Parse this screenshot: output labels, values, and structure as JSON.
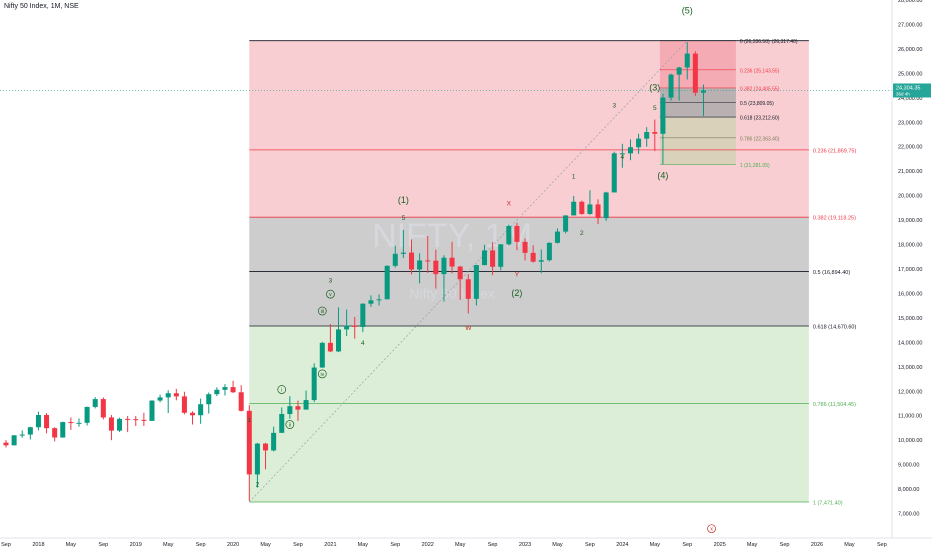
{
  "header": {
    "symbol_title": "Nifty 50 Index, 1M, NSE"
  },
  "watermark": {
    "symbol": "NIFTY, 1M",
    "name": "Nifty 50 Index"
  },
  "price_tag": {
    "price": "24,304.35",
    "countdown": "36d 4h"
  },
  "colors": {
    "up": "#089981",
    "down": "#f23645",
    "fib_red": "#f7c6cb",
    "fib_gray": "#c8c8c8",
    "fib_green": "#d8ecd3",
    "price_tag": "#26a69a"
  },
  "chart_data": {
    "type": "candlestick",
    "interval": "1M",
    "ylim": [
      6000,
      28000
    ],
    "x_range": [
      "2017-09",
      "2026-10"
    ],
    "grid": false,
    "y_ticks": [
      "7,000.00",
      "8,000.00",
      "9,000.00",
      "10,000.00",
      "11,000.00",
      "12,000.00",
      "13,000.00",
      "14,000.00",
      "15,000.00",
      "16,000.00",
      "17,000.00",
      "18,000.00",
      "19,000.00",
      "20,000.00",
      "21,000.00",
      "22,000.00",
      "23,000.00",
      "24,000.00",
      "25,000.00",
      "26,000.00",
      "27,000.00",
      "28,000.00"
    ],
    "y_tick_values": [
      7000,
      8000,
      9000,
      10000,
      11000,
      12000,
      13000,
      14000,
      15000,
      16000,
      17000,
      18000,
      19000,
      20000,
      21000,
      22000,
      23000,
      24000,
      25000,
      26000,
      27000,
      28000
    ],
    "x_ticks": [
      {
        "label": "Sep",
        "date": "2017-09"
      },
      {
        "label": "2018",
        "date": "2018-01"
      },
      {
        "label": "May",
        "date": "2018-05"
      },
      {
        "label": "Sep",
        "date": "2018-09"
      },
      {
        "label": "2019",
        "date": "2019-01"
      },
      {
        "label": "May",
        "date": "2019-05"
      },
      {
        "label": "Sep",
        "date": "2019-09"
      },
      {
        "label": "2020",
        "date": "2020-01"
      },
      {
        "label": "May",
        "date": "2020-05"
      },
      {
        "label": "Sep",
        "date": "2020-09"
      },
      {
        "label": "2021",
        "date": "2021-01"
      },
      {
        "label": "May",
        "date": "2021-05"
      },
      {
        "label": "Sep",
        "date": "2021-09"
      },
      {
        "label": "2022",
        "date": "2022-01"
      },
      {
        "label": "May",
        "date": "2022-05"
      },
      {
        "label": "Sep",
        "date": "2022-09"
      },
      {
        "label": "2023",
        "date": "2023-01"
      },
      {
        "label": "May",
        "date": "2023-05"
      },
      {
        "label": "Sep",
        "date": "2023-09"
      },
      {
        "label": "2024",
        "date": "2024-01"
      },
      {
        "label": "May",
        "date": "2024-05"
      },
      {
        "label": "Sep",
        "date": "2024-09"
      },
      {
        "label": "2025",
        "date": "2025-01"
      },
      {
        "label": "May",
        "date": "2025-05"
      },
      {
        "label": "Sep",
        "date": "2025-09"
      },
      {
        "label": "2026",
        "date": "2026-01"
      },
      {
        "label": "May",
        "date": "2026-05"
      },
      {
        "label": "Sep",
        "date": "2026-09"
      }
    ],
    "candles": [
      {
        "d": "2017-09",
        "o": 9900,
        "h": 10000,
        "l": 9700,
        "c": 9790
      },
      {
        "d": "2017-10",
        "o": 9790,
        "h": 10200,
        "l": 9780,
        "c": 10200
      },
      {
        "d": "2017-11",
        "o": 10200,
        "h": 10400,
        "l": 10100,
        "c": 10230
      },
      {
        "d": "2017-12",
        "o": 10230,
        "h": 10550,
        "l": 10030,
        "c": 10530
      },
      {
        "d": "2018-01",
        "o": 10530,
        "h": 11170,
        "l": 10400,
        "c": 11030
      },
      {
        "d": "2018-02",
        "o": 11030,
        "h": 11110,
        "l": 10280,
        "c": 10490
      },
      {
        "d": "2018-03",
        "o": 10490,
        "h": 10530,
        "l": 9950,
        "c": 10110
      },
      {
        "d": "2018-04",
        "o": 10110,
        "h": 10760,
        "l": 10100,
        "c": 10740
      },
      {
        "d": "2018-05",
        "o": 10740,
        "h": 10930,
        "l": 10420,
        "c": 10710
      },
      {
        "d": "2018-06",
        "o": 10710,
        "h": 10890,
        "l": 10550,
        "c": 10710
      },
      {
        "d": "2018-07",
        "o": 10710,
        "h": 11370,
        "l": 10600,
        "c": 11360
      },
      {
        "d": "2018-08",
        "o": 11360,
        "h": 11760,
        "l": 11300,
        "c": 11680
      },
      {
        "d": "2018-09",
        "o": 11680,
        "h": 11750,
        "l": 10850,
        "c": 10930
      },
      {
        "d": "2018-10",
        "o": 10930,
        "h": 11030,
        "l": 10000,
        "c": 10390
      },
      {
        "d": "2018-11",
        "o": 10390,
        "h": 10920,
        "l": 10340,
        "c": 10870
      },
      {
        "d": "2018-12",
        "o": 10870,
        "h": 10990,
        "l": 10330,
        "c": 10860
      },
      {
        "d": "2019-01",
        "o": 10860,
        "h": 10990,
        "l": 10580,
        "c": 10830
      },
      {
        "d": "2019-02",
        "o": 10830,
        "h": 11120,
        "l": 10580,
        "c": 10790
      },
      {
        "d": "2019-03",
        "o": 10790,
        "h": 11630,
        "l": 10820,
        "c": 11620
      },
      {
        "d": "2019-04",
        "o": 11620,
        "h": 11860,
        "l": 11550,
        "c": 11750
      },
      {
        "d": "2019-05",
        "o": 11750,
        "h": 12040,
        "l": 11110,
        "c": 11920
      },
      {
        "d": "2019-06",
        "o": 11920,
        "h": 12100,
        "l": 11630,
        "c": 11790
      },
      {
        "d": "2019-07",
        "o": 11790,
        "h": 11980,
        "l": 11060,
        "c": 11120
      },
      {
        "d": "2019-08",
        "o": 11120,
        "h": 11180,
        "l": 10640,
        "c": 11020
      },
      {
        "d": "2019-09",
        "o": 11020,
        "h": 11700,
        "l": 10670,
        "c": 11470
      },
      {
        "d": "2019-10",
        "o": 11470,
        "h": 11950,
        "l": 11090,
        "c": 11880
      },
      {
        "d": "2019-11",
        "o": 11880,
        "h": 12160,
        "l": 11800,
        "c": 12060
      },
      {
        "d": "2019-12",
        "o": 12060,
        "h": 12290,
        "l": 11830,
        "c": 12170
      },
      {
        "d": "2020-01",
        "o": 12170,
        "h": 12430,
        "l": 11930,
        "c": 11960
      },
      {
        "d": "2020-02",
        "o": 11960,
        "h": 12250,
        "l": 11170,
        "c": 11200
      },
      {
        "d": "2020-03",
        "o": 11200,
        "h": 11430,
        "l": 7510,
        "c": 8600
      },
      {
        "d": "2020-04",
        "o": 8600,
        "h": 9890,
        "l": 8060,
        "c": 9860
      },
      {
        "d": "2020-05",
        "o": 9860,
        "h": 9890,
        "l": 8810,
        "c": 9580
      },
      {
        "d": "2020-06",
        "o": 9580,
        "h": 10550,
        "l": 9540,
        "c": 10300
      },
      {
        "d": "2020-07",
        "o": 10300,
        "h": 11340,
        "l": 10300,
        "c": 11070
      },
      {
        "d": "2020-08",
        "o": 11070,
        "h": 11800,
        "l": 10880,
        "c": 11390
      },
      {
        "d": "2020-09",
        "o": 11390,
        "h": 11620,
        "l": 10790,
        "c": 11250
      },
      {
        "d": "2020-10",
        "o": 11250,
        "h": 12030,
        "l": 11350,
        "c": 11640
      },
      {
        "d": "2020-11",
        "o": 11640,
        "h": 13140,
        "l": 11560,
        "c": 12970
      },
      {
        "d": "2020-12",
        "o": 12970,
        "h": 14020,
        "l": 12960,
        "c": 13980
      },
      {
        "d": "2021-01",
        "o": 13980,
        "h": 14750,
        "l": 13600,
        "c": 13630
      },
      {
        "d": "2021-02",
        "o": 13630,
        "h": 15430,
        "l": 13600,
        "c": 14530
      },
      {
        "d": "2021-03",
        "o": 14530,
        "h": 15340,
        "l": 14260,
        "c": 14690
      },
      {
        "d": "2021-04",
        "o": 14690,
        "h": 15040,
        "l": 14150,
        "c": 14630
      },
      {
        "d": "2021-05",
        "o": 14630,
        "h": 15600,
        "l": 14420,
        "c": 15580
      },
      {
        "d": "2021-06",
        "o": 15580,
        "h": 15920,
        "l": 15450,
        "c": 15720
      },
      {
        "d": "2021-07",
        "o": 15720,
        "h": 15960,
        "l": 15510,
        "c": 15760
      },
      {
        "d": "2021-08",
        "o": 15760,
        "h": 17150,
        "l": 15830,
        "c": 17130
      },
      {
        "d": "2021-09",
        "o": 17130,
        "h": 17950,
        "l": 17060,
        "c": 17620
      },
      {
        "d": "2021-10",
        "o": 17620,
        "h": 18600,
        "l": 17450,
        "c": 17670
      },
      {
        "d": "2021-11",
        "o": 17670,
        "h": 18210,
        "l": 16780,
        "c": 16980
      },
      {
        "d": "2021-12",
        "o": 16980,
        "h": 17640,
        "l": 16410,
        "c": 17350
      },
      {
        "d": "2022-01",
        "o": 17350,
        "h": 18350,
        "l": 16840,
        "c": 17340
      },
      {
        "d": "2022-02",
        "o": 17340,
        "h": 17790,
        "l": 16200,
        "c": 16790
      },
      {
        "d": "2022-03",
        "o": 16790,
        "h": 17560,
        "l": 15670,
        "c": 17460
      },
      {
        "d": "2022-04",
        "o": 17460,
        "h": 18110,
        "l": 16820,
        "c": 17100
      },
      {
        "d": "2022-05",
        "o": 17100,
        "h": 17130,
        "l": 15740,
        "c": 16580
      },
      {
        "d": "2022-06",
        "o": 16580,
        "h": 16790,
        "l": 15180,
        "c": 15780
      },
      {
        "d": "2022-07",
        "o": 15780,
        "h": 17170,
        "l": 15510,
        "c": 17160
      },
      {
        "d": "2022-08",
        "o": 17160,
        "h": 17990,
        "l": 17150,
        "c": 17760
      },
      {
        "d": "2022-09",
        "o": 17760,
        "h": 18100,
        "l": 16750,
        "c": 17090
      },
      {
        "d": "2022-10",
        "o": 17090,
        "h": 18020,
        "l": 16950,
        "c": 18010
      },
      {
        "d": "2022-11",
        "o": 18010,
        "h": 18820,
        "l": 17960,
        "c": 18760
      },
      {
        "d": "2022-12",
        "o": 18760,
        "h": 18890,
        "l": 17770,
        "c": 18110
      },
      {
        "d": "2023-01",
        "o": 18110,
        "h": 18250,
        "l": 17350,
        "c": 17660
      },
      {
        "d": "2023-02",
        "o": 17660,
        "h": 17970,
        "l": 17260,
        "c": 17300
      },
      {
        "d": "2023-03",
        "o": 17300,
        "h": 17800,
        "l": 16830,
        "c": 17360
      },
      {
        "d": "2023-04",
        "o": 17360,
        "h": 18090,
        "l": 17310,
        "c": 18070
      },
      {
        "d": "2023-05",
        "o": 18070,
        "h": 18660,
        "l": 18040,
        "c": 18530
      },
      {
        "d": "2023-06",
        "o": 18530,
        "h": 19200,
        "l": 18460,
        "c": 19190
      },
      {
        "d": "2023-07",
        "o": 19190,
        "h": 19990,
        "l": 19230,
        "c": 19750
      },
      {
        "d": "2023-08",
        "o": 19750,
        "h": 19800,
        "l": 19220,
        "c": 19250
      },
      {
        "d": "2023-09",
        "o": 19250,
        "h": 20220,
        "l": 19220,
        "c": 19640
      },
      {
        "d": "2023-10",
        "o": 19640,
        "h": 19850,
        "l": 18840,
        "c": 19080
      },
      {
        "d": "2023-11",
        "o": 19080,
        "h": 20160,
        "l": 18970,
        "c": 20130
      },
      {
        "d": "2023-12",
        "o": 20130,
        "h": 21800,
        "l": 20180,
        "c": 21730
      },
      {
        "d": "2024-01",
        "o": 21730,
        "h": 22120,
        "l": 21140,
        "c": 21730
      },
      {
        "d": "2024-02",
        "o": 21730,
        "h": 22300,
        "l": 21450,
        "c": 21980
      },
      {
        "d": "2024-03",
        "o": 21980,
        "h": 22530,
        "l": 21710,
        "c": 22330
      },
      {
        "d": "2024-04",
        "o": 22330,
        "h": 22800,
        "l": 22000,
        "c": 22600
      },
      {
        "d": "2024-05",
        "o": 22600,
        "h": 23110,
        "l": 21820,
        "c": 22530
      },
      {
        "d": "2024-06",
        "o": 22530,
        "h": 24170,
        "l": 21280,
        "c": 24010
      },
      {
        "d": "2024-07",
        "o": 24010,
        "h": 24990,
        "l": 23890,
        "c": 24950
      },
      {
        "d": "2024-08",
        "o": 24950,
        "h": 25270,
        "l": 23890,
        "c": 25240
      },
      {
        "d": "2024-09",
        "o": 25240,
        "h": 26280,
        "l": 24750,
        "c": 25810
      },
      {
        "d": "2024-10",
        "o": 25810,
        "h": 25900,
        "l": 24080,
        "c": 24210
      },
      {
        "d": "2024-11",
        "o": 24210,
        "h": 24540,
        "l": 23260,
        "c": 24300
      }
    ],
    "fib_big": {
      "from": "2020-03",
      "to": "2025-12",
      "levels": [
        {
          "label": "0.236 (21,869.75)",
          "value": 21869.75,
          "color": "#f23645"
        },
        {
          "label": "0.382 (19,118.25)",
          "value": 19118.25,
          "color": "#f23645"
        },
        {
          "label": "0.5 (16,894.40)",
          "value": 16894.4,
          "color": "#131722"
        },
        {
          "label": "0.618 (14,670.60)",
          "value": 14670.6,
          "color": "#131722"
        },
        {
          "label": "0.786 (11,504.45)",
          "value": 11504.45,
          "color": "#4caf50"
        },
        {
          "label": "1 (7,471.40)",
          "value": 7471.4,
          "color": "#4caf50"
        }
      ],
      "top": 26336.5
    },
    "fib_small": {
      "from": "2024-06",
      "to": "2025-03",
      "levels": [
        {
          "label": "0 (26,336.50)",
          "value": 26336.5,
          "color": "#131722"
        },
        {
          "label": "0.236 (25,143.55)",
          "value": 25143.55,
          "color": "#f23645"
        },
        {
          "label": "0.382 (24,405.55)",
          "value": 24405.55,
          "color": "#f23645"
        },
        {
          "label": "0.5 (23,809.05)",
          "value": 23809.05,
          "color": "#131722"
        },
        {
          "label": "0.618 (23,212.60)",
          "value": 23212.6,
          "color": "#131722"
        },
        {
          "label": "0.786 (22,363.40)",
          "value": 22363.4,
          "color": "#7c7c55"
        },
        {
          "label": "1 (21,281.05)",
          "value": 21281.05,
          "color": "#4caf50"
        }
      ],
      "extra_label": "(26,317.40)"
    },
    "wave_labels": [
      {
        "text": "(5)",
        "d": "2024-09",
        "y": 27450,
        "size": "big"
      },
      {
        "text": "(3)",
        "d": "2024-05",
        "y": 24300,
        "size": "big"
      },
      {
        "text": "(4)",
        "d": "2024-06",
        "y": 20700,
        "size": "big"
      },
      {
        "text": "(1)",
        "d": "2021-10",
        "y": 19700,
        "size": "big"
      },
      {
        "text": "(2)",
        "d": "2022-12",
        "y": 15900,
        "size": "big"
      },
      {
        "text": "5",
        "d": "2024-05",
        "y": 23500,
        "size": "small"
      },
      {
        "text": "3",
        "d": "2023-12",
        "y": 23600,
        "size": "small"
      },
      {
        "text": "4",
        "d": "2024-01",
        "y": 21500,
        "size": "small"
      },
      {
        "text": "1",
        "d": "2023-07",
        "y": 20700,
        "size": "small"
      },
      {
        "text": "2",
        "d": "2023-08",
        "y": 18400,
        "size": "small"
      },
      {
        "text": "X",
        "d": "2022-11",
        "y": 19600,
        "size": "small"
      },
      {
        "text": "Y",
        "d": "2022-12",
        "y": 16700,
        "size": "small"
      },
      {
        "text": "W",
        "d": "2022-06",
        "y": 14500,
        "size": "small"
      },
      {
        "text": "5",
        "d": "2021-10",
        "y": 19000,
        "size": "small"
      },
      {
        "text": "3",
        "d": "2021-01",
        "y": 16450,
        "size": "small"
      },
      {
        "text": "4",
        "d": "2021-05",
        "y": 13900,
        "size": "small"
      },
      {
        "text": "1",
        "d": "2020-03",
        "y": 10750,
        "size": "small"
      },
      {
        "text": "2",
        "d": "2020-04",
        "y": 8100,
        "size": "small"
      }
    ],
    "circle_labels": [
      {
        "text": "v",
        "d": "2021-01",
        "y": 15890
      },
      {
        "text": "iii",
        "d": "2020-12",
        "y": 15200
      },
      {
        "text": "iv",
        "d": "2020-12",
        "y": 12630
      },
      {
        "text": "i",
        "d": "2020-07",
        "y": 11990
      },
      {
        "text": "ii",
        "d": "2020-08",
        "y": 10560
      },
      {
        "text": "x",
        "d": "2024-12",
        "y": 6300
      }
    ]
  }
}
